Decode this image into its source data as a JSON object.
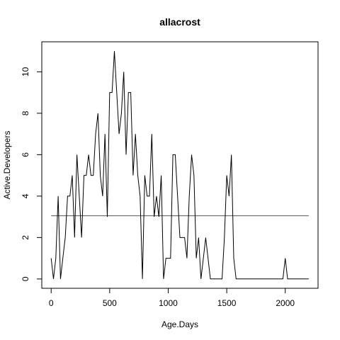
{
  "chart_data": {
    "type": "line",
    "title": "allacrost",
    "xlabel": "Age.Days",
    "ylabel": "Active.Developers",
    "xlim": [
      -80,
      2280
    ],
    "ylim": [
      -0.45,
      11.45
    ],
    "x_ticks": [
      0,
      500,
      1000,
      1500,
      2000
    ],
    "y_ticks": [
      0,
      2,
      4,
      6,
      8,
      10
    ],
    "reference_line": 3.05,
    "reference_line_x": [
      0,
      2200
    ],
    "grid": false,
    "line_color": "#000000",
    "reference_line_color": "#555555",
    "series": [
      {
        "x": [
          0,
          20,
          40,
          60,
          80,
          100,
          120,
          140,
          160,
          180,
          200,
          220,
          240,
          260,
          280,
          300,
          320,
          340,
          360,
          380,
          400,
          420,
          440,
          460,
          480,
          500,
          520,
          540,
          560,
          580,
          600,
          620,
          640,
          660,
          680,
          700,
          720,
          740,
          760,
          780,
          800,
          820,
          840,
          860,
          880,
          900,
          920,
          940,
          960,
          980,
          1000,
          1020,
          1040,
          1060,
          1080,
          1100,
          1120,
          1140,
          1160,
          1180,
          1200,
          1220,
          1240,
          1260,
          1280,
          1300,
          1320,
          1340,
          1360,
          1380,
          1400,
          1420,
          1440,
          1460,
          1480,
          1500,
          1520,
          1540,
          1560,
          1580,
          1600,
          1620,
          1640,
          1660,
          1680,
          1700,
          1720,
          1740,
          1760,
          1780,
          1800,
          1820,
          1840,
          1860,
          1880,
          1900,
          1920,
          1940,
          1960,
          1980,
          2000,
          2020,
          2040,
          2060,
          2080,
          2100,
          2120,
          2140,
          2160,
          2180,
          2200
        ],
        "values": [
          1,
          0,
          1,
          4,
          0,
          1,
          2,
          4,
          4,
          5,
          2,
          6,
          4,
          2,
          5,
          5,
          6,
          5,
          5,
          7,
          8,
          5,
          4,
          7,
          3,
          9,
          9,
          11,
          9,
          7,
          8,
          10,
          6,
          9,
          9,
          5,
          7,
          5,
          4,
          0,
          5,
          4,
          4,
          7,
          3,
          4,
          3,
          5,
          0,
          1,
          1,
          1,
          6,
          6,
          4,
          2,
          2,
          2,
          1,
          4,
          6,
          5,
          1,
          2,
          0,
          1,
          2,
          1,
          0,
          0,
          0,
          0,
          0,
          0,
          2,
          5,
          4,
          6,
          1,
          0,
          0,
          0,
          0,
          0,
          0,
          0,
          0,
          0,
          0,
          0,
          0,
          0,
          0,
          0,
          0,
          0,
          0,
          0,
          0,
          0,
          1,
          0,
          0,
          0,
          0,
          0,
          0,
          0,
          0,
          0,
          0
        ]
      }
    ]
  }
}
